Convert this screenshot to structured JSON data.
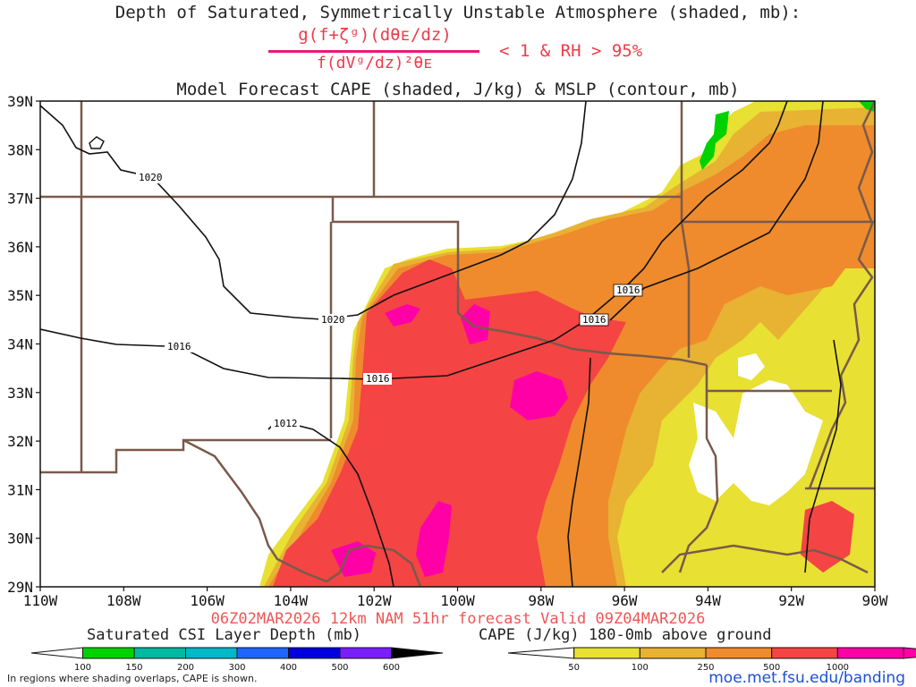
{
  "header": {
    "title_line1": "Depth of Saturated, Symmetrically Unstable Atmosphere (shaded, mb):",
    "fraction_numerator": "g(f+ζᵍ)(dθᴇ/dz)",
    "fraction_denominator": "f(dVᵍ/dz)²θᴇ",
    "condition": "< 1 & RH > 95%",
    "title_line2": "Model Forecast CAPE (shaded, J/kg) & MSLP (contour, mb)"
  },
  "axes": {
    "lat_labels": [
      "39N",
      "38N",
      "37N",
      "36N",
      "35N",
      "34N",
      "33N",
      "32N",
      "31N",
      "30N",
      "29N"
    ],
    "lat_values": [
      39,
      38,
      37,
      36,
      35,
      34,
      33,
      32,
      31,
      30,
      29
    ],
    "lon_labels": [
      "110W",
      "108W",
      "106W",
      "104W",
      "102W",
      "100W",
      "98W",
      "96W",
      "94W",
      "92W",
      "90W"
    ],
    "lon_values": [
      -110,
      -108,
      -106,
      -104,
      -102,
      -100,
      -98,
      -96,
      -94,
      -92,
      -90
    ],
    "lat_range": [
      29,
      39
    ],
    "lon_range": [
      -110,
      -90
    ]
  },
  "isobars": [
    {
      "label": "1020"
    },
    {
      "label": "1020"
    },
    {
      "label": "1016"
    },
    {
      "label": "1016"
    },
    {
      "label": "1016"
    },
    {
      "label": "1016"
    },
    {
      "label": "1012"
    }
  ],
  "run_info": "06Z02MAR2026 12km NAM 51hr forecast Valid 09Z04MAR2026",
  "colorbars": {
    "csi": {
      "title": "Saturated CSI Layer Depth (mb)",
      "ticks": [
        "100",
        "150",
        "200",
        "300",
        "400",
        "500",
        "600"
      ],
      "colors": [
        "#00d100",
        "#00b8a0",
        "#00b8c8",
        "#1f66ff",
        "#0000e0",
        "#7a1fff",
        "#000000"
      ]
    },
    "cape": {
      "title": "CAPE (J/kg) 180-0mb above ground",
      "ticks": [
        "50",
        "100",
        "250",
        "500",
        "1000"
      ],
      "colors": [
        "#e8e033",
        "#e8b233",
        "#ef8b2c",
        "#f44444",
        "#ff00a6"
      ]
    }
  },
  "footnote": "In regions where shading overlaps, CAPE is shown.",
  "url": "moe.met.fsu.edu/banding"
}
